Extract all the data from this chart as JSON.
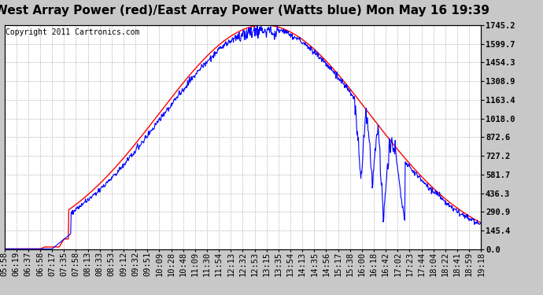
{
  "title": "West Array Power (red)/East Array Power (Watts blue) Mon May 16 19:39",
  "copyright": "Copyright 2011 Cartronics.com",
  "background_color": "#c8c8c8",
  "plot_background": "#ffffff",
  "grid_color": "#aaaaaa",
  "ymax": 1745.2,
  "ymin": 0.0,
  "yticks": [
    0.0,
    145.4,
    290.9,
    436.3,
    581.7,
    727.2,
    872.6,
    1018.0,
    1163.4,
    1308.9,
    1454.3,
    1599.7,
    1745.2
  ],
  "x_labels": [
    "05:58",
    "06:19",
    "06:37",
    "06:58",
    "07:17",
    "07:35",
    "07:58",
    "08:13",
    "08:33",
    "08:53",
    "09:12",
    "09:32",
    "09:51",
    "10:09",
    "10:28",
    "10:48",
    "11:09",
    "11:30",
    "11:54",
    "12:13",
    "12:32",
    "12:53",
    "13:15",
    "13:35",
    "13:54",
    "14:13",
    "14:35",
    "14:56",
    "15:17",
    "15:38",
    "16:00",
    "16:18",
    "16:42",
    "17:02",
    "17:23",
    "17:44",
    "18:04",
    "18:22",
    "18:41",
    "18:59",
    "19:18"
  ],
  "red_line_color": "#ff0000",
  "blue_line_color": "#0000ff",
  "title_fontsize": 11,
  "copyright_fontsize": 7,
  "tick_fontsize": 7.5
}
